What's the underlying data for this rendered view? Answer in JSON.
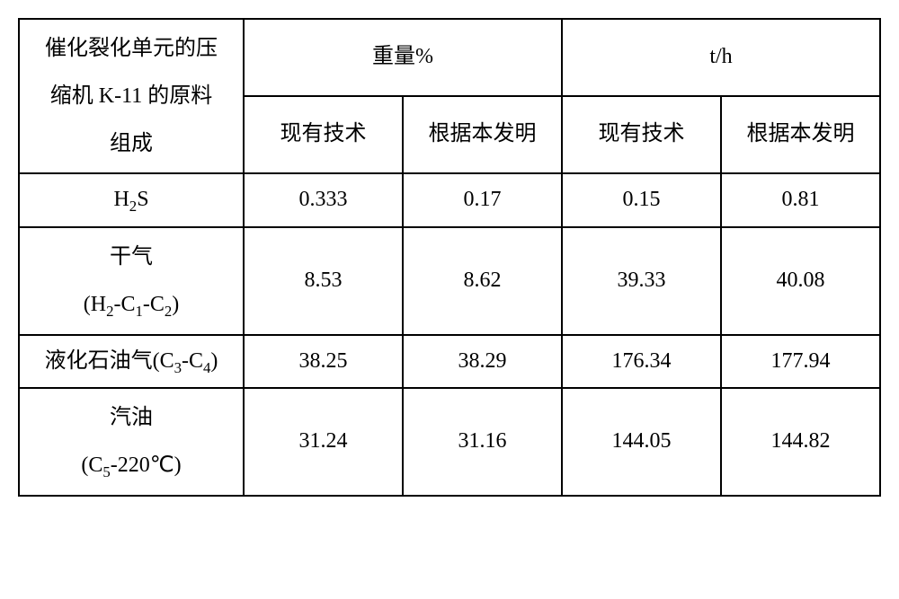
{
  "table": {
    "header": {
      "rowLabel": "催化裂化单元的压<br>缩机 K-11 的原料<br>组成",
      "group1": "重量%",
      "group2": "t/h",
      "sub1": "现有技术",
      "sub2": "根据本发明",
      "sub3": "现有技术",
      "sub4": "根据本发明"
    },
    "rows": [
      {
        "label": "H<sub>2</sub>S",
        "c1": "0.333",
        "c2": "0.17",
        "c3": "0.15",
        "c4": "0.81",
        "multiline": false
      },
      {
        "label": "干气<br>(H<sub>2</sub>-C<sub>1</sub>-C<sub>2</sub>)",
        "c1": "8.53",
        "c2": "8.62",
        "c3": "39.33",
        "c4": "40.08",
        "multiline": true
      },
      {
        "label": "液化石油气(C<sub>3</sub>-C<sub>4</sub>)",
        "c1": "38.25",
        "c2": "38.29",
        "c3": "176.34",
        "c4": "177.94",
        "multiline": false
      },
      {
        "label": "汽油<br>(C<sub>5</sub>-220℃)",
        "c1": "31.24",
        "c2": "31.16",
        "c3": "144.05",
        "c4": "144.82",
        "multiline": true
      }
    ],
    "style": {
      "borderColor": "#000000",
      "background": "#ffffff",
      "fontSize": 24,
      "cellPadding": 6,
      "col0Width": 250,
      "colDataWidth": 177
    }
  }
}
